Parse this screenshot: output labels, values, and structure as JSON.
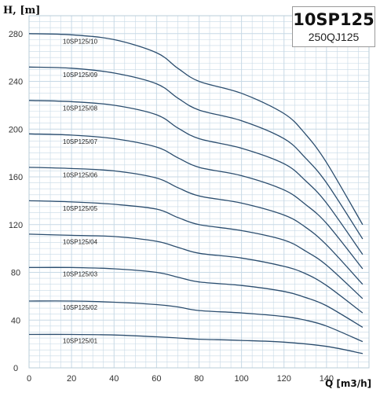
{
  "chart_data": {
    "type": "line",
    "title": "10SP125",
    "subtitle": "250QJ125",
    "ylabel": "H, [m]",
    "xlabel": "Q [m3/h]",
    "xlim": [
      0,
      160
    ],
    "ylim": [
      0,
      295
    ],
    "xticks": [
      0,
      20,
      40,
      60,
      80,
      100,
      120,
      140
    ],
    "yticks": [
      0,
      40,
      80,
      120,
      160,
      200,
      240,
      280
    ],
    "grid": true,
    "line_color": "#2b4d6e",
    "grid_color": "#c7d9e6",
    "series": [
      {
        "name": "10SP125/01",
        "x": [
          0,
          20,
          40,
          60,
          70,
          80,
          100,
          120,
          140,
          157
        ],
        "y": [
          28,
          28,
          27.5,
          26,
          25,
          24,
          23,
          21.5,
          18,
          12
        ]
      },
      {
        "name": "10SP125/02",
        "x": [
          0,
          20,
          40,
          60,
          70,
          80,
          100,
          120,
          130,
          140,
          157
        ],
        "y": [
          56,
          56,
          55,
          53,
          51,
          48,
          46,
          43,
          40,
          35,
          22
        ]
      },
      {
        "name": "10SP125/03",
        "x": [
          0,
          20,
          40,
          60,
          70,
          80,
          100,
          120,
          130,
          140,
          157
        ],
        "y": [
          84,
          84,
          83,
          80,
          76,
          72,
          69,
          64,
          59,
          52,
          34
        ]
      },
      {
        "name": "10SP125/04",
        "x": [
          0,
          20,
          40,
          60,
          70,
          80,
          100,
          120,
          130,
          140,
          157
        ],
        "y": [
          112,
          111,
          110,
          106,
          101,
          96,
          92,
          85,
          79,
          69,
          46
        ]
      },
      {
        "name": "10SP125/05",
        "x": [
          0,
          20,
          40,
          60,
          70,
          80,
          100,
          120,
          130,
          140,
          157
        ],
        "y": [
          140,
          139,
          137,
          133,
          126,
          120,
          115,
          107,
          98,
          86,
          58
        ]
      },
      {
        "name": "10SP125/06",
        "x": [
          0,
          20,
          40,
          60,
          70,
          80,
          100,
          120,
          130,
          140,
          157
        ],
        "y": [
          168,
          167,
          165,
          159,
          151,
          144,
          138,
          128,
          118,
          103,
          70
        ]
      },
      {
        "name": "10SP125/07",
        "x": [
          0,
          20,
          40,
          60,
          70,
          80,
          100,
          120,
          130,
          140,
          157
        ],
        "y": [
          196,
          195,
          192,
          185,
          176,
          168,
          161,
          149,
          137,
          121,
          83
        ]
      },
      {
        "name": "10SP125/08",
        "x": [
          0,
          20,
          40,
          60,
          70,
          80,
          100,
          120,
          130,
          140,
          157
        ],
        "y": [
          224,
          223,
          220,
          212,
          201,
          192,
          184,
          171,
          157,
          138,
          95
        ]
      },
      {
        "name": "10SP125/09",
        "x": [
          0,
          20,
          40,
          60,
          70,
          80,
          100,
          120,
          130,
          140,
          157
        ],
        "y": [
          252,
          251,
          247,
          238,
          226,
          216,
          207,
          192,
          176,
          155,
          108
        ]
      },
      {
        "name": "10SP125/10",
        "x": [
          0,
          20,
          40,
          60,
          70,
          80,
          100,
          120,
          130,
          140,
          157
        ],
        "y": [
          280,
          279,
          275,
          264,
          251,
          240,
          230,
          213,
          196,
          172,
          120
        ]
      }
    ]
  }
}
